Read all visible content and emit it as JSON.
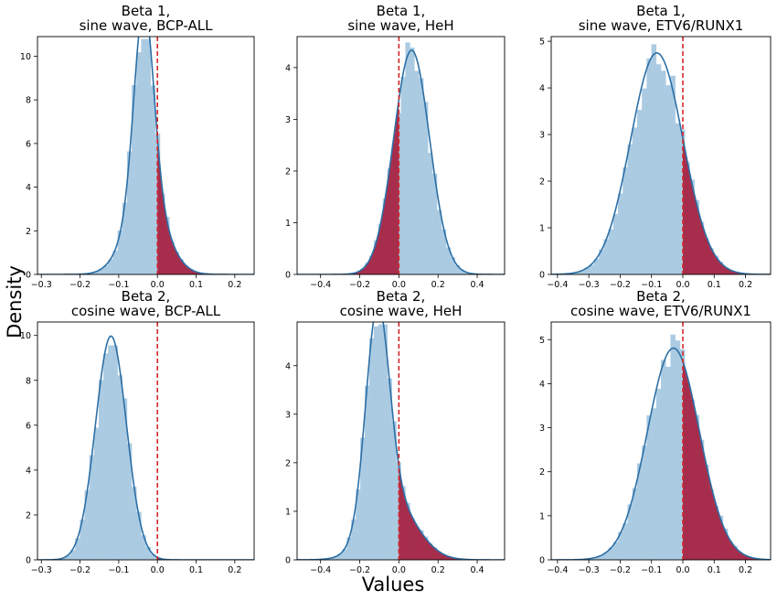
{
  "figure": {
    "ylabel": "Density",
    "xlabel": "Values",
    "colors": {
      "hist": "#a6c8e0",
      "kde": "#2c6fa5",
      "shade": "#a5213f",
      "zero_line": "#d62728"
    }
  },
  "chart_data": [
    {
      "type": "area",
      "title_lines": [
        "Beta 1,",
        "sine wave, BCP-ALL"
      ],
      "xlim": [
        -0.31,
        0.25
      ],
      "ylim": [
        0,
        10.9
      ],
      "xticks": [
        -0.3,
        -0.2,
        -0.1,
        0.0,
        0.1,
        0.2
      ],
      "xtick_labels": [
        "−0.3",
        "−0.2",
        "−0.1",
        "0.0",
        "0.1",
        "0.2"
      ],
      "yticks": [
        0,
        2,
        4,
        6,
        8,
        10
      ],
      "ytick_labels": [
        "0",
        "2",
        "4",
        "6",
        "8",
        "10"
      ],
      "kde": {
        "components": [
          {
            "w": 0.55,
            "mu": -0.035,
            "sd": 0.025
          },
          {
            "w": 0.45,
            "mu": -0.03,
            "sd": 0.05
          }
        ]
      },
      "shaded_region": "x > 0",
      "vline_x": 0
    },
    {
      "type": "area",
      "title_lines": [
        "Beta 1,",
        "sine wave, HeH"
      ],
      "xlim": [
        -0.52,
        0.54
      ],
      "ylim": [
        0,
        4.6
      ],
      "xticks": [
        -0.4,
        -0.2,
        0.0,
        0.2,
        0.4
      ],
      "xtick_labels": [
        "−0.4",
        "−0.2",
        "0.0",
        "0.2",
        "0.4"
      ],
      "yticks": [
        0,
        1,
        2,
        3,
        4
      ],
      "ytick_labels": [
        "0",
        "1",
        "2",
        "3",
        "4"
      ],
      "kde": {
        "components": [
          {
            "w": 1.0,
            "mu": 0.065,
            "sd": 0.092
          }
        ]
      },
      "shaded_region": "x < 0",
      "vline_x": 0
    },
    {
      "type": "area",
      "title_lines": [
        "Beta 1,",
        "sine wave, ETV6/RUNX1"
      ],
      "xlim": [
        -0.42,
        0.28
      ],
      "ylim": [
        0,
        5.1
      ],
      "xticks": [
        -0.4,
        -0.3,
        -0.2,
        -0.1,
        0.0,
        0.1,
        0.2
      ],
      "xtick_labels": [
        "−0.4",
        "−0.3",
        "−0.2",
        "−0.1",
        "0.0",
        "0.1",
        "0.2"
      ],
      "yticks": [
        0,
        1,
        2,
        3,
        4,
        5
      ],
      "ytick_labels": [
        "0",
        "1",
        "2",
        "3",
        "4",
        "5"
      ],
      "kde": {
        "components": [
          {
            "w": 1.0,
            "mu": -0.083,
            "sd": 0.084
          }
        ]
      },
      "shaded_region": "x > 0",
      "vline_x": 0
    },
    {
      "type": "area",
      "title_lines": [
        "Beta 2,",
        "cosine wave, BCP-ALL"
      ],
      "xlim": [
        -0.31,
        0.25
      ],
      "ylim": [
        0,
        10.6
      ],
      "xticks": [
        -0.3,
        -0.2,
        -0.1,
        0.0,
        0.1,
        0.2
      ],
      "xtick_labels": [
        "−0.3",
        "−0.2",
        "−0.1",
        "0.0",
        "0.1",
        "0.2"
      ],
      "yticks": [
        0,
        2,
        4,
        6,
        8,
        10
      ],
      "ytick_labels": [
        "0",
        "2",
        "4",
        "6",
        "8",
        "10"
      ],
      "kde": {
        "components": [
          {
            "w": 1.0,
            "mu": -0.12,
            "sd": 0.04
          }
        ]
      },
      "shaded_region": "x > 0",
      "vline_x": 0
    },
    {
      "type": "area",
      "title_lines": [
        "Beta 2,",
        "cosine wave, HeH"
      ],
      "xlim": [
        -0.52,
        0.54
      ],
      "ylim": [
        0,
        4.9
      ],
      "xticks": [
        -0.4,
        -0.2,
        0.0,
        0.2,
        0.4
      ],
      "xtick_labels": [
        "−0.4",
        "−0.2",
        "0.0",
        "0.2",
        "0.4"
      ],
      "yticks": [
        0,
        1,
        2,
        3,
        4
      ],
      "ytick_labels": [
        "0",
        "1",
        "2",
        "3",
        "4"
      ],
      "kde": {
        "components": [
          {
            "w": 0.65,
            "mu": -0.11,
            "sd": 0.06
          },
          {
            "w": 0.35,
            "mu": -0.03,
            "sd": 0.12
          }
        ]
      },
      "shaded_region": "x > 0",
      "vline_x": 0
    },
    {
      "type": "area",
      "title_lines": [
        "Beta 2,",
        "cosine wave, ETV6/RUNX1"
      ],
      "xlim": [
        -0.42,
        0.28
      ],
      "ylim": [
        0,
        5.4
      ],
      "xticks": [
        -0.4,
        -0.3,
        -0.2,
        -0.1,
        0.0,
        0.1,
        0.2
      ],
      "xtick_labels": [
        "−0.4",
        "−0.3",
        "−0.2",
        "−0.1",
        "0.0",
        "0.1",
        "0.2"
      ],
      "yticks": [
        0,
        1,
        2,
        3,
        4,
        5
      ],
      "ytick_labels": [
        "0",
        "1",
        "2",
        "3",
        "4",
        "5"
      ],
      "kde": {
        "components": [
          {
            "w": 1.0,
            "mu": -0.03,
            "sd": 0.083
          }
        ]
      },
      "shaded_region": "x > 0",
      "vline_x": 0
    }
  ]
}
